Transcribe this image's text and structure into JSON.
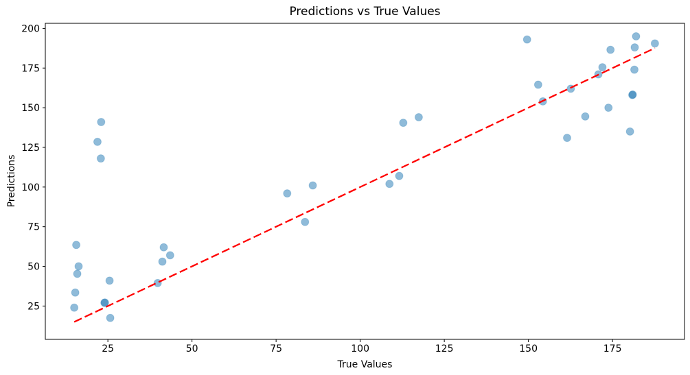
{
  "figure": {
    "title": "Predictions vs True Values",
    "xlabel": "True Values",
    "ylabel": "Predictions"
  },
  "chart_data": {
    "type": "scatter",
    "title": "Predictions vs True Values",
    "xlabel": "True Values",
    "ylabel": "Predictions",
    "xlim": [
      6.4,
      196.4
    ],
    "ylim": [
      4.0,
      203.2
    ],
    "x_ticks": [
      25,
      50,
      75,
      100,
      125,
      150,
      175
    ],
    "y_ticks": [
      25,
      50,
      75,
      100,
      125,
      150,
      175,
      200
    ],
    "grid": false,
    "legend_position": "none",
    "marker_color": "#1f77b4",
    "marker_alpha": 0.5,
    "marker_radius": 5.5,
    "line_color": "#ff0000",
    "line_style": "dashed",
    "series": [
      {
        "name": "scatter-predictions",
        "type": "scatter",
        "points": [
          [
            15.6,
            63.5
          ],
          [
            16.3,
            50.0
          ],
          [
            15.9,
            45.3
          ],
          [
            15.3,
            33.5
          ],
          [
            15.0,
            24.0
          ],
          [
            21.9,
            128.5
          ],
          [
            23.0,
            141.0
          ],
          [
            22.9,
            118.0
          ],
          [
            25.5,
            41.0
          ],
          [
            24.0,
            27.0
          ],
          [
            24.1,
            27.2
          ],
          [
            25.7,
            17.5
          ],
          [
            41.6,
            62.0
          ],
          [
            43.5,
            57.0
          ],
          [
            41.2,
            53.0
          ],
          [
            39.8,
            39.5
          ],
          [
            78.3,
            96.0
          ],
          [
            85.9,
            101.0
          ],
          [
            83.6,
            78.0
          ],
          [
            108.7,
            102.0
          ],
          [
            111.6,
            107.0
          ],
          [
            112.8,
            140.5
          ],
          [
            117.4,
            144.0
          ],
          [
            149.6,
            193.0
          ],
          [
            152.9,
            164.5
          ],
          [
            154.3,
            154.0
          ],
          [
            161.5,
            131.0
          ],
          [
            162.6,
            162.0
          ],
          [
            166.9,
            144.5
          ],
          [
            170.8,
            171.0
          ],
          [
            172.0,
            175.5
          ],
          [
            173.8,
            150.0
          ],
          [
            174.4,
            186.5
          ],
          [
            180.2,
            135.0
          ],
          [
            180.9,
            158.0
          ],
          [
            181.0,
            158.3
          ],
          [
            181.5,
            174.0
          ],
          [
            181.6,
            188.0
          ],
          [
            182.0,
            195.0
          ],
          [
            187.6,
            190.5
          ]
        ]
      },
      {
        "name": "identity-line",
        "type": "line",
        "points": [
          [
            15.0,
            15.0
          ],
          [
            187.6,
            187.6
          ]
        ]
      }
    ]
  }
}
